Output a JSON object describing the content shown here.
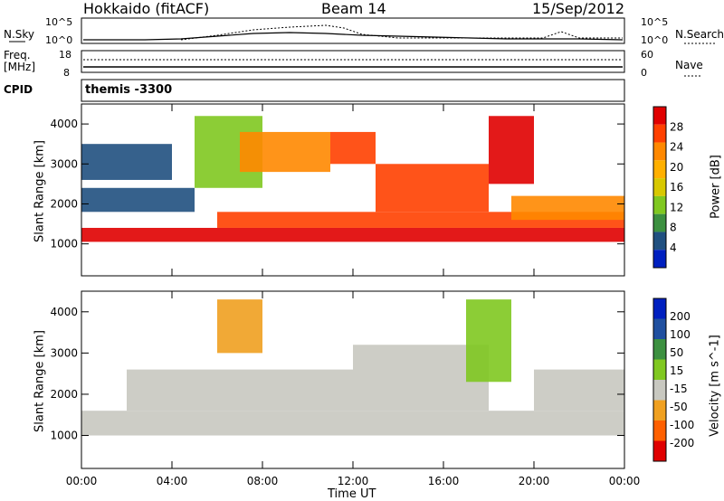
{
  "header": {
    "station": "Hokkaido (fitACF)",
    "beam": "Beam 14",
    "date": "15/Sep/2012"
  },
  "strips": {
    "nsky_label": "N.Sky",
    "nsky_ticks": [
      "10^5",
      "10^0"
    ],
    "nsearch_label": "N.Search",
    "nsearch_ticks": [
      "10^5",
      "10^0"
    ],
    "freq_label_1": "Freq.",
    "freq_label_2": "[MHz]",
    "freq_ticks": [
      "18",
      "8"
    ],
    "nave_label": "Nave",
    "nave_ticks": [
      "60",
      "0"
    ],
    "cpid_label": "CPID",
    "cpid_value": "themis -3300"
  },
  "chart_data": [
    {
      "type": "heatmap",
      "name": "power",
      "ylabel": "Slant Range [km]",
      "yticks": [
        1000,
        2000,
        3000,
        4000
      ],
      "ylim": [
        200,
        4500
      ],
      "colorbar_label": "Power [dB]",
      "colorbar_ticks": [
        "28",
        "24",
        "20",
        "16",
        "12",
        "8",
        "4"
      ],
      "colors": [
        "#e00000",
        "#ff4000",
        "#ff8800",
        "#ffb000",
        "#d8c800",
        "#80c820",
        "#3c9040",
        "#205080",
        "#0020c0"
      ],
      "bands": [
        {
          "t0": 0,
          "t1": 24,
          "r": [
            1050,
            1400
          ],
          "level": 0
        },
        {
          "t0": 6,
          "t1": 24,
          "r": [
            1400,
            1800
          ],
          "level": 1
        },
        {
          "t0": 13,
          "t1": 18,
          "r": [
            1800,
            3000
          ],
          "level": 1
        },
        {
          "t0": 0,
          "t1": 5,
          "r": [
            1800,
            2400
          ],
          "level": 7
        },
        {
          "t0": 0,
          "t1": 4,
          "r": [
            2600,
            3500
          ],
          "level": 7
        },
        {
          "t0": 5,
          "t1": 8,
          "r": [
            2400,
            4200
          ],
          "level": 5
        },
        {
          "t0": 7,
          "t1": 11,
          "r": [
            2800,
            3800
          ],
          "level": 2
        },
        {
          "t0": 11,
          "t1": 13,
          "r": [
            3000,
            3800
          ],
          "level": 1
        },
        {
          "t0": 18,
          "t1": 20,
          "r": [
            2500,
            4200
          ],
          "level": 0
        },
        {
          "t0": 19,
          "t1": 24,
          "r": [
            1600,
            2200
          ],
          "level": 2
        }
      ]
    },
    {
      "type": "heatmap",
      "name": "velocity",
      "ylabel": "Slant Range [km]",
      "yticks": [
        1000,
        2000,
        3000,
        4000
      ],
      "ylim": [
        200,
        4500
      ],
      "xlabel": "Time UT",
      "xticks": [
        "00:00",
        "04:00",
        "08:00",
        "12:00",
        "16:00",
        "20:00",
        "00:00"
      ],
      "xlim": [
        0,
        24
      ],
      "colorbar_label": "Velocity [m s^-1]",
      "colorbar_ticks": [
        "200",
        "100",
        "50",
        "15",
        "-15",
        "-50",
        "-100",
        "-200"
      ],
      "colors": [
        "#0020c0",
        "#2050a0",
        "#3c9040",
        "#80c820",
        "#c8c8c0",
        "#f0a020",
        "#ff6000",
        "#e00000"
      ],
      "bands": [
        {
          "t0": 0,
          "t1": 24,
          "r": [
            1000,
            1600
          ],
          "level": 4
        },
        {
          "t0": 2,
          "t1": 12,
          "r": [
            1600,
            2600
          ],
          "level": 4
        },
        {
          "t0": 12,
          "t1": 18,
          "r": [
            1600,
            3200
          ],
          "level": 4
        },
        {
          "t0": 6,
          "t1": 8,
          "r": [
            3000,
            4300
          ],
          "level": 5
        },
        {
          "t0": 17,
          "t1": 19,
          "r": [
            2300,
            4300
          ],
          "level": 3
        },
        {
          "t0": 20,
          "t1": 24,
          "r": [
            1600,
            2600
          ],
          "level": 4
        }
      ]
    }
  ]
}
